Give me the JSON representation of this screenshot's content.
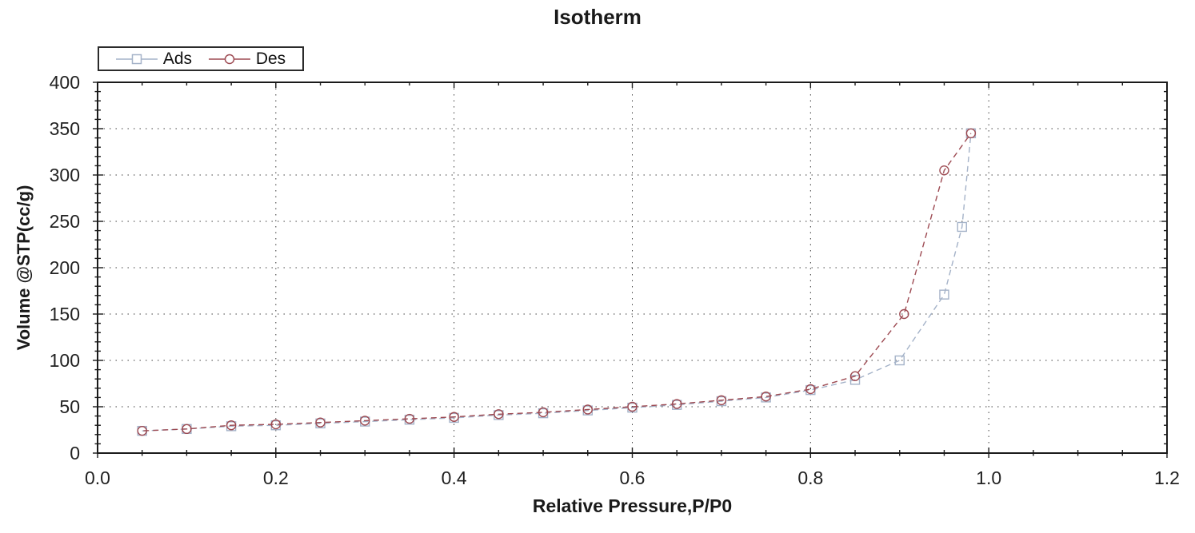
{
  "chart_data": {
    "type": "line",
    "title": "Isotherm",
    "xlabel": "Relative Pressure,P/P0",
    "ylabel": "Volume @STP(cc/g)",
    "xlim": [
      0.0,
      1.2
    ],
    "ylim": [
      0,
      400
    ],
    "x_major_ticks": [
      0.0,
      0.2,
      0.4,
      0.6,
      0.8,
      1.0,
      1.2
    ],
    "x_tick_labels": [
      "0.0",
      "0.2",
      "0.4",
      "0.6",
      "0.8",
      "1.0",
      "1.2"
    ],
    "x_minor_step": 0.05,
    "y_major_ticks": [
      0,
      50,
      100,
      150,
      200,
      250,
      300,
      350,
      400
    ],
    "y_minor_step": 10,
    "grid": "dotted lines at major ticks, boxed frame with inward ticks on all four sides",
    "frame_color": "#1a1a1a",
    "text_color": "#222222",
    "grid_color": "#3c3c3c",
    "legend": {
      "position": "top-left",
      "border_color": "#2b2b2b",
      "entries": [
        "Ads",
        "Des"
      ]
    },
    "series": [
      {
        "name": "Ads",
        "marker": "square",
        "color": "#a4b2c8",
        "line_style": "dashed",
        "points": [
          [
            0.05,
            24
          ],
          [
            0.1,
            26
          ],
          [
            0.15,
            29
          ],
          [
            0.2,
            30
          ],
          [
            0.25,
            32
          ],
          [
            0.3,
            34
          ],
          [
            0.35,
            36
          ],
          [
            0.4,
            38
          ],
          [
            0.45,
            41
          ],
          [
            0.5,
            43
          ],
          [
            0.55,
            46
          ],
          [
            0.6,
            49
          ],
          [
            0.65,
            52
          ],
          [
            0.7,
            56
          ],
          [
            0.75,
            60
          ],
          [
            0.8,
            68
          ],
          [
            0.85,
            79
          ],
          [
            0.9,
            100
          ],
          [
            0.95,
            171
          ],
          [
            0.97,
            244
          ],
          [
            0.98,
            345
          ]
        ]
      },
      {
        "name": "Des",
        "marker": "circle",
        "color": "#9d4a52",
        "line_style": "dashed",
        "points": [
          [
            0.98,
            345
          ],
          [
            0.95,
            305
          ],
          [
            0.905,
            150
          ],
          [
            0.85,
            83
          ],
          [
            0.8,
            69
          ],
          [
            0.75,
            61
          ],
          [
            0.7,
            57
          ],
          [
            0.65,
            53
          ],
          [
            0.6,
            50
          ],
          [
            0.55,
            47
          ],
          [
            0.5,
            44
          ],
          [
            0.45,
            42
          ],
          [
            0.4,
            39
          ],
          [
            0.35,
            37
          ],
          [
            0.3,
            35
          ],
          [
            0.25,
            33
          ],
          [
            0.2,
            31
          ],
          [
            0.15,
            30
          ],
          [
            0.1,
            26
          ],
          [
            0.05,
            24
          ]
        ]
      }
    ]
  }
}
